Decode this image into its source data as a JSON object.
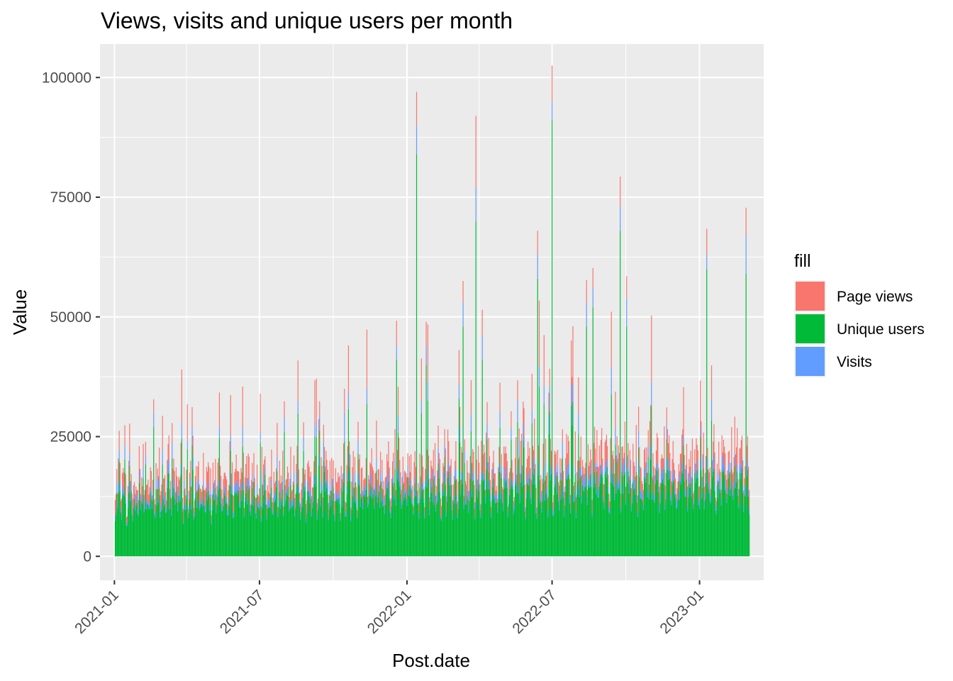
{
  "chart_data": {
    "type": "bar",
    "stacked": true,
    "title": "Views, visits and unique users per month",
    "xlabel": "Post.date",
    "ylabel": "Value",
    "ylim": [
      -5000,
      107000
    ],
    "xlim": [
      "2020-12-14",
      "2023-03-22"
    ],
    "y_ticks": [
      0,
      25000,
      50000,
      75000,
      100000
    ],
    "x_ticks": [
      "2021-01",
      "2021-07",
      "2022-01",
      "2022-07",
      "2023-01"
    ],
    "x_tick_dates": [
      "2021-01-01",
      "2021-07-01",
      "2022-01-01",
      "2022-07-01",
      "2023-01-01"
    ],
    "grid": true,
    "background": "#ebebeb",
    "legend": {
      "title": "fill",
      "position": "right",
      "entries": [
        {
          "label": "Page views",
          "color": "#F8766D"
        },
        {
          "label": "Unique users",
          "color": "#00BA38"
        },
        {
          "label": "Visits",
          "color": "#619CFF"
        }
      ]
    },
    "series_order_bottom_to_top": [
      "Unique users",
      "Visits",
      "Page views"
    ],
    "spikes": [
      {
        "date": "2021-02-19",
        "page_views": 32800,
        "visits": 30000,
        "unique_users": 27000
      },
      {
        "date": "2021-08-01",
        "page_views": 32400,
        "visits": 29000,
        "unique_users": 26000
      },
      {
        "date": "2021-08-25",
        "page_views": 28000,
        "visits": 25000,
        "unique_users": 22000
      },
      {
        "date": "2021-09-19",
        "page_views": 27500,
        "visits": 24000,
        "unique_users": 20000
      },
      {
        "date": "2021-10-15",
        "page_views": 35000,
        "visits": 30000,
        "unique_users": 24000
      },
      {
        "date": "2021-12-19",
        "page_views": 49200,
        "visits": 44000,
        "unique_users": 41000
      },
      {
        "date": "2022-01-13",
        "page_views": 97000,
        "visits": 90000,
        "unique_users": 84000
      },
      {
        "date": "2022-01-25",
        "page_views": 49000,
        "visits": 44000,
        "unique_users": 40000
      },
      {
        "date": "2022-03-12",
        "page_views": 57500,
        "visits": 53000,
        "unique_users": 48000
      },
      {
        "date": "2022-03-28",
        "page_views": 92000,
        "visits": 77000,
        "unique_users": 70000
      },
      {
        "date": "2022-04-05",
        "page_views": 51500,
        "visits": 46000,
        "unique_users": 41000
      },
      {
        "date": "2022-06-13",
        "page_views": 68000,
        "visits": 63000,
        "unique_users": 58000
      },
      {
        "date": "2022-07-01",
        "page_views": 102500,
        "visits": 95000,
        "unique_users": 91000
      },
      {
        "date": "2022-08-13",
        "page_views": 57700,
        "visits": 53000,
        "unique_users": 48000
      },
      {
        "date": "2022-08-21",
        "page_views": 60200,
        "visits": 56000,
        "unique_users": 52000
      },
      {
        "date": "2022-09-24",
        "page_views": 79300,
        "visits": 73000,
        "unique_users": 68000
      },
      {
        "date": "2022-10-02",
        "page_views": 58500,
        "visits": 54000,
        "unique_users": 48000
      },
      {
        "date": "2023-01-10",
        "page_views": 68400,
        "visits": 63000,
        "unique_users": 60000
      },
      {
        "date": "2023-02-28",
        "page_views": 72800,
        "visits": 67000,
        "unique_users": 59000
      }
    ],
    "baseline": {
      "unique_users": [
        9000,
        14000
      ],
      "visits": [
        10500,
        16500
      ],
      "page_views": [
        12500,
        20000
      ]
    }
  }
}
